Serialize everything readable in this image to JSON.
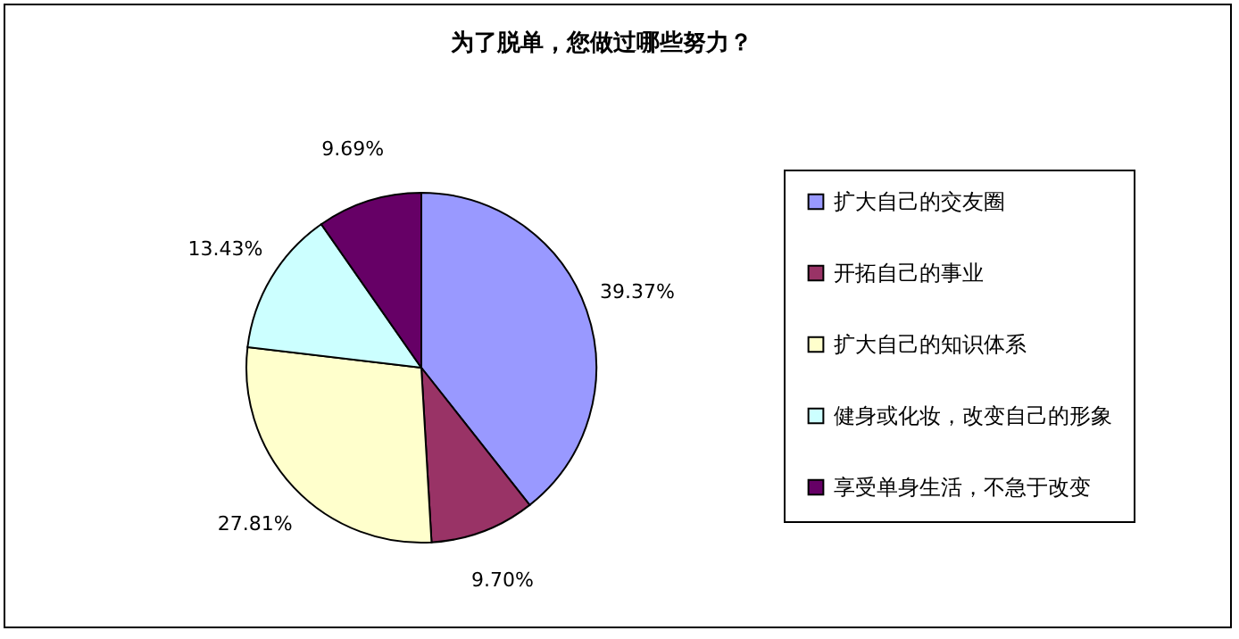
{
  "chart_data": {
    "type": "pie",
    "title": "为了脱单，您做过哪些努力？",
    "categories": [
      "扩大自己的交友圈",
      "开拓自己的事业",
      "扩大自己的知识体系",
      "健身或化妆，改变自己的形象",
      "享受单身生活，不急于改变"
    ],
    "values": [
      39.37,
      9.7,
      27.81,
      13.43,
      9.69
    ],
    "value_labels": [
      "39.37%",
      "9.70%",
      "27.81%",
      "13.43%",
      "9.69%"
    ],
    "colors": [
      "#9999ff",
      "#993366",
      "#ffffcc",
      "#ccffff",
      "#660066"
    ],
    "legend": "right"
  }
}
